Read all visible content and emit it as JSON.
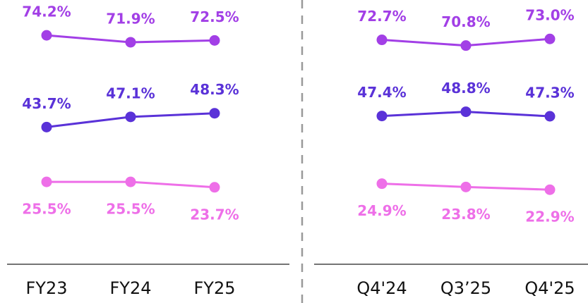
{
  "chart_data": [
    {
      "type": "line",
      "categories": [
        "FY23",
        "FY24",
        "FY25"
      ],
      "ylim": [
        0,
        85
      ],
      "series": [
        {
          "color": "#a23fe6",
          "values": [
            74.2,
            71.9,
            72.5
          ],
          "value_labels": [
            "74.2%",
            "71.9%",
            "72.5%"
          ]
        },
        {
          "color": "#5a32d8",
          "values": [
            43.7,
            47.1,
            48.3
          ],
          "value_labels": [
            "43.7%",
            "47.1%",
            "48.3%"
          ]
        },
        {
          "color": "#ee6fe8",
          "values": [
            25.5,
            25.5,
            23.7
          ],
          "value_labels": [
            "25.5%",
            "25.5%",
            "23.7%"
          ]
        }
      ]
    },
    {
      "type": "line",
      "categories": [
        "Q4'24",
        "Q3’25",
        "Q4'25"
      ],
      "ylim": [
        0,
        85
      ],
      "series": [
        {
          "color": "#a23fe6",
          "values": [
            72.7,
            70.8,
            73.0
          ],
          "value_labels": [
            "72.7%",
            "70.8%",
            "73.0%"
          ]
        },
        {
          "color": "#5a32d8",
          "values": [
            47.4,
            48.8,
            47.3
          ],
          "value_labels": [
            "47.4%",
            "48.8%",
            "47.3%"
          ]
        },
        {
          "color": "#ee6fe8",
          "values": [
            24.9,
            23.8,
            22.9
          ],
          "value_labels": [
            "24.9%",
            "23.8%",
            "22.9%"
          ]
        }
      ]
    }
  ]
}
